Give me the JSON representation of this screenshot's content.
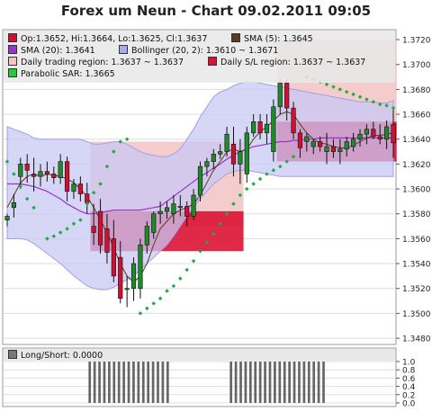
{
  "title": "Forex um Neun - Chart 09.02.2011 09:05",
  "legend": {
    "ohlc": "Op:1.3652, Hi:1.3664, Lo:1.3625, Cl:1.3637",
    "sma5": "SMA (5): 1.3645",
    "sma20": "SMA (20): 1.3641",
    "bollinger": "Bollinger (20, 2): 1.3610 ~ 1.3671",
    "daily_region": "Daily trading region: 1.3637 ~ 1.3637",
    "daily_sl": "Daily S/L region: 1.3637 ~ 1.3637",
    "sar": "Parabolic SAR: 1.3665",
    "longshort": "Long/Short: 0.0000"
  },
  "colors": {
    "ohlc": "#cc1133",
    "sma5": "#5a3a22",
    "sma20": "#9933cc",
    "bollinger": "#aaaaee",
    "daily_region": "#f4c6c6",
    "daily_sl": "#dd1133",
    "sar": "#22aa44",
    "up": "#1e8a2a",
    "down": "#d01030"
  },
  "chart_data": [
    {
      "type": "candlestick",
      "yticks": [
        "1.3480",
        "1.3500",
        "1.3520",
        "1.3540",
        "1.3560",
        "1.3580",
        "1.3600",
        "1.3620",
        "1.3640",
        "1.3660",
        "1.3680",
        "1.3700",
        "1.3720"
      ],
      "ylim": [
        1.3475,
        1.3728
      ],
      "candles": [
        [
          1.3575,
          1.358,
          1.357,
          1.3578
        ],
        [
          1.3585,
          1.3596,
          1.3577,
          1.3589
        ],
        [
          1.361,
          1.3625,
          1.36,
          1.362
        ],
        [
          1.362,
          1.3628,
          1.3605,
          1.3615
        ],
        [
          1.3612,
          1.3625,
          1.3598,
          1.361
        ],
        [
          1.361,
          1.362,
          1.3602,
          1.3614
        ],
        [
          1.3614,
          1.3622,
          1.3606,
          1.3612
        ],
        [
          1.3612,
          1.3618,
          1.3604,
          1.3609
        ],
        [
          1.3609,
          1.3628,
          1.3604,
          1.3622
        ],
        [
          1.3622,
          1.3626,
          1.359,
          1.3598
        ],
        [
          1.3598,
          1.3608,
          1.3592,
          1.3604
        ],
        [
          1.3604,
          1.361,
          1.359,
          1.3596
        ],
        [
          1.3596,
          1.3605,
          1.358,
          1.3589
        ],
        [
          1.357,
          1.3588,
          1.3555,
          1.3565
        ],
        [
          1.3582,
          1.3592,
          1.3548,
          1.3555
        ],
        [
          1.3568,
          1.358,
          1.354,
          1.3549
        ],
        [
          1.356,
          1.3575,
          1.3525,
          1.353
        ],
        [
          1.3545,
          1.3558,
          1.3508,
          1.3512
        ],
        [
          1.352,
          1.353,
          1.3505,
          1.352
        ],
        [
          1.352,
          1.3545,
          1.351,
          1.354
        ],
        [
          1.352,
          1.356,
          1.3512,
          1.3555
        ],
        [
          1.3555,
          1.3574,
          1.3548,
          1.357
        ],
        [
          1.3565,
          1.3582,
          1.356,
          1.358
        ],
        [
          1.358,
          1.359,
          1.3572,
          1.3582
        ],
        [
          1.3582,
          1.359,
          1.3576,
          1.3585
        ],
        [
          1.358,
          1.3595,
          1.3572,
          1.3588
        ],
        [
          1.3585,
          1.3595,
          1.3578,
          1.3586
        ],
        [
          1.3586,
          1.359,
          1.357,
          1.3578
        ],
        [
          1.3578,
          1.36,
          1.3575,
          1.3595
        ],
        [
          1.3595,
          1.3622,
          1.359,
          1.3618
        ],
        [
          1.3618,
          1.3625,
          1.361,
          1.3622
        ],
        [
          1.3622,
          1.3632,
          1.3616,
          1.3628
        ],
        [
          1.3628,
          1.3636,
          1.3624,
          1.363
        ],
        [
          1.363,
          1.365,
          1.3626,
          1.3644
        ],
        [
          1.3636,
          1.365,
          1.361,
          1.362
        ],
        [
          1.362,
          1.364,
          1.3604,
          1.363
        ],
        [
          1.3612,
          1.365,
          1.3605,
          1.3645
        ],
        [
          1.3645,
          1.366,
          1.3642,
          1.3654
        ],
        [
          1.3654,
          1.366,
          1.364,
          1.3645
        ],
        [
          1.3645,
          1.366,
          1.3636,
          1.3652
        ],
        [
          1.363,
          1.3672,
          1.3622,
          1.3666
        ],
        [
          1.3666,
          1.3688,
          1.366,
          1.3685
        ],
        [
          1.3685,
          1.3688,
          1.3655,
          1.3665
        ],
        [
          1.3665,
          1.367,
          1.364,
          1.3645
        ],
        [
          1.3645,
          1.3648,
          1.3625,
          1.3633
        ],
        [
          1.3638,
          1.3645,
          1.363,
          1.3642
        ],
        [
          1.3634,
          1.364,
          1.3628,
          1.3638
        ],
        [
          1.3638,
          1.3642,
          1.363,
          1.3634
        ],
        [
          1.363,
          1.3645,
          1.362,
          1.3634
        ],
        [
          1.3634,
          1.364,
          1.3625,
          1.363
        ],
        [
          1.363,
          1.364,
          1.362,
          1.3632
        ],
        [
          1.3632,
          1.3642,
          1.3626,
          1.3638
        ],
        [
          1.3634,
          1.3645,
          1.363,
          1.364
        ],
        [
          1.364,
          1.3648,
          1.3634,
          1.3644
        ],
        [
          1.3644,
          1.3652,
          1.3636,
          1.3648
        ],
        [
          1.3648,
          1.3654,
          1.364,
          1.3642
        ],
        [
          1.3642,
          1.3652,
          1.3636,
          1.364
        ],
        [
          1.364,
          1.3655,
          1.3632,
          1.365
        ],
        [
          1.3652,
          1.3664,
          1.3625,
          1.3637
        ]
      ],
      "sma5": [
        1.3585,
        1.3595,
        1.3605,
        1.361,
        1.3612,
        1.361,
        1.3612,
        1.3611,
        1.361,
        1.3608,
        1.3605,
        1.36,
        1.3594,
        1.3585,
        1.3575,
        1.3565,
        1.3553,
        1.354,
        1.353,
        1.3525,
        1.353,
        1.354,
        1.3555,
        1.3568,
        1.3574,
        1.358,
        1.3583,
        1.3585,
        1.3588,
        1.3595,
        1.3605,
        1.3615,
        1.3622,
        1.363,
        1.3632,
        1.363,
        1.3632,
        1.364,
        1.3646,
        1.365,
        1.3655,
        1.366,
        1.3662,
        1.366,
        1.3652,
        1.3645,
        1.364,
        1.3637,
        1.3636,
        1.3634,
        1.3633,
        1.3633,
        1.3635,
        1.3638,
        1.3641,
        1.3643,
        1.3643,
        1.3644,
        1.3645
      ],
      "sma20": [
        1.3604,
        1.3604,
        1.3604,
        1.3603,
        1.3602,
        1.36,
        1.3598,
        1.3595,
        1.3592,
        1.3588,
        1.3585,
        1.3582,
        1.358,
        1.358,
        1.3581,
        1.3582,
        1.3583,
        1.3583,
        1.3583,
        1.3583,
        1.3583,
        1.3584,
        1.3585,
        1.3586,
        1.359,
        1.3594,
        1.3598,
        1.3602,
        1.3606,
        1.361,
        1.3613,
        1.3617,
        1.362,
        1.3624,
        1.3627,
        1.363,
        1.3632,
        1.3634,
        1.3635,
        1.3636,
        1.3637,
        1.3638,
        1.3638,
        1.3639,
        1.3639,
        1.364,
        1.364,
        1.3641,
        1.3641,
        1.3641,
        1.3641,
        1.3641,
        1.3641,
        1.3641,
        1.3641,
        1.3641,
        1.3641,
        1.3641,
        1.3641
      ],
      "boll_upper": [
        1.365,
        1.3648,
        1.3646,
        1.3644,
        1.3641,
        1.364,
        1.364,
        1.364,
        1.364,
        1.364,
        1.364,
        1.364,
        1.3638,
        1.3636,
        1.3636,
        1.3637,
        1.3638,
        1.3638,
        1.3636,
        1.3633,
        1.363,
        1.3628,
        1.3627,
        1.3626,
        1.3626,
        1.3628,
        1.3632,
        1.364,
        1.3648,
        1.3658,
        1.3666,
        1.3674,
        1.3678,
        1.368,
        1.3683,
        1.3685,
        1.3686,
        1.3686,
        1.3685,
        1.3684,
        1.3683,
        1.3682,
        1.3681,
        1.368,
        1.3679,
        1.3678,
        1.3677,
        1.3676,
        1.3675,
        1.3674,
        1.3673,
        1.3672,
        1.3671,
        1.367,
        1.367,
        1.367,
        1.3669,
        1.3669,
        1.3671
      ],
      "boll_lower": [
        1.356,
        1.356,
        1.356,
        1.3559,
        1.3556,
        1.3552,
        1.3548,
        1.3544,
        1.354,
        1.3535,
        1.353,
        1.3526,
        1.3522,
        1.352,
        1.3519,
        1.3519,
        1.3521,
        1.3524,
        1.3527,
        1.353,
        1.3535,
        1.354,
        1.3545,
        1.355,
        1.3555,
        1.3562,
        1.357,
        1.3578,
        1.3585,
        1.3592,
        1.3598,
        1.3604,
        1.3608,
        1.3612,
        1.3614,
        1.3615,
        1.3615,
        1.3614,
        1.3613,
        1.3612,
        1.3611,
        1.361,
        1.361,
        1.361,
        1.361,
        1.361,
        1.361,
        1.361,
        1.361,
        1.361,
        1.361,
        1.361,
        1.361,
        1.361,
        1.361,
        1.361,
        1.361,
        1.361,
        1.361
      ],
      "sar": [
        1.3622,
        1.3612,
        1.3602,
        1.3592,
        1.3585,
        null,
        1.356,
        1.3562,
        1.3565,
        1.3568,
        1.3572,
        1.3575,
        1.3588,
        1.3597,
        1.3604,
        1.3618,
        1.363,
        1.3638,
        1.364,
        null,
        1.35,
        1.3504,
        1.3508,
        1.3512,
        1.3518,
        1.3522,
        1.3528,
        1.3535,
        1.3542,
        1.355,
        1.3557,
        1.3564,
        1.3572,
        1.358,
        1.3588,
        1.3595,
        1.36,
        1.3604,
        1.3608,
        1.3612,
        1.3615,
        1.3618,
        1.3622,
        1.3626,
        null,
        1.369,
        1.3688,
        1.3686,
        1.3684,
        1.3682,
        1.368,
        1.3678,
        1.3676,
        1.3674,
        1.3672,
        1.367,
        1.3668,
        1.3667,
        1.3665
      ],
      "daily_regions": [
        {
          "start": 13,
          "end": 35,
          "top": 1.3638,
          "bottom": 1.357
        },
        {
          "start": 41,
          "end": 60,
          "top": 1.372,
          "bottom": 1.365
        }
      ],
      "sl_regions": [
        {
          "start": 13,
          "end": 35,
          "top": 1.3582,
          "bottom": 1.355
        },
        {
          "start": 41,
          "end": 60,
          "top": 1.3654,
          "bottom": 1.3622
        }
      ]
    },
    {
      "type": "bar",
      "yticks": [
        "0.0",
        "0.2",
        "0.4",
        "0.6",
        "0.8",
        "1.0"
      ],
      "ylim": [
        0,
        1
      ],
      "values": [
        0,
        0,
        0,
        0,
        0,
        0,
        0,
        0,
        0,
        0,
        0,
        0,
        0,
        0,
        0,
        0,
        0,
        1,
        1,
        1,
        1,
        1,
        1,
        1,
        1,
        1,
        1,
        1,
        1,
        1,
        1,
        1,
        1,
        1,
        0,
        0,
        0,
        0,
        0,
        0,
        0,
        0,
        0,
        0,
        0,
        0,
        1,
        1,
        1,
        1,
        1,
        1,
        1,
        1,
        1,
        1,
        1,
        1,
        1,
        1,
        1,
        1,
        1,
        1,
        1,
        1,
        0,
        0,
        0,
        0,
        0,
        0,
        0,
        0,
        0,
        0,
        0,
        0,
        0,
        0
      ]
    }
  ]
}
